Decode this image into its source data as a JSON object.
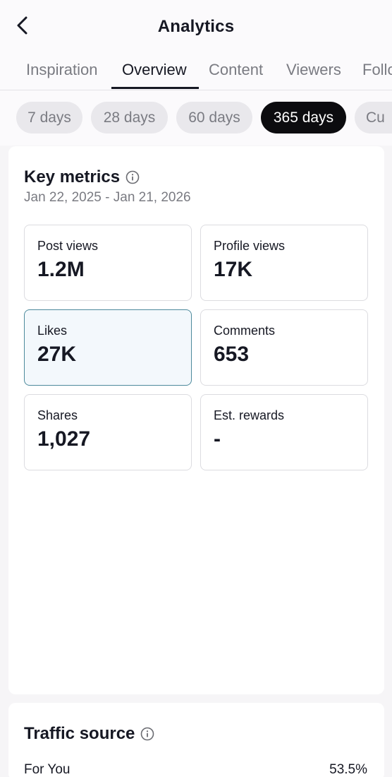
{
  "header": {
    "title": "Analytics",
    "back_icon": "chevron-left-icon"
  },
  "tabs": [
    {
      "label": "Inspiration",
      "active": false
    },
    {
      "label": "Overview",
      "active": true
    },
    {
      "label": "Content",
      "active": false
    },
    {
      "label": "Viewers",
      "active": false
    },
    {
      "label": "Follo",
      "active": false
    }
  ],
  "date_filters": [
    {
      "label": "7 days",
      "active": false
    },
    {
      "label": "28 days",
      "active": false
    },
    {
      "label": "60 days",
      "active": false
    },
    {
      "label": "365 days",
      "active": true
    },
    {
      "label": "Cu",
      "active": false
    }
  ],
  "key_metrics": {
    "title": "Key metrics",
    "date_range": "Jan 22, 2025 - Jan 21, 2026",
    "items": [
      {
        "label": "Post views",
        "value": "1.2M",
        "selected": false
      },
      {
        "label": "Profile views",
        "value": "17K",
        "selected": false
      },
      {
        "label": "Likes",
        "value": "27K",
        "selected": true
      },
      {
        "label": "Comments",
        "value": "653",
        "selected": false
      },
      {
        "label": "Shares",
        "value": "1,027",
        "selected": false
      },
      {
        "label": "Est. rewards",
        "value": "-",
        "selected": false
      }
    ]
  },
  "traffic_source": {
    "title": "Traffic source",
    "rows": [
      {
        "label": "For You",
        "value": "53.5%"
      }
    ]
  },
  "colors": {
    "text": "#161823",
    "muted": "#7a7b82",
    "active_pill": "#0c0c0f",
    "selected_metric_bg": "#f3f8fc",
    "selected_metric_border": "#4d8a9c"
  }
}
